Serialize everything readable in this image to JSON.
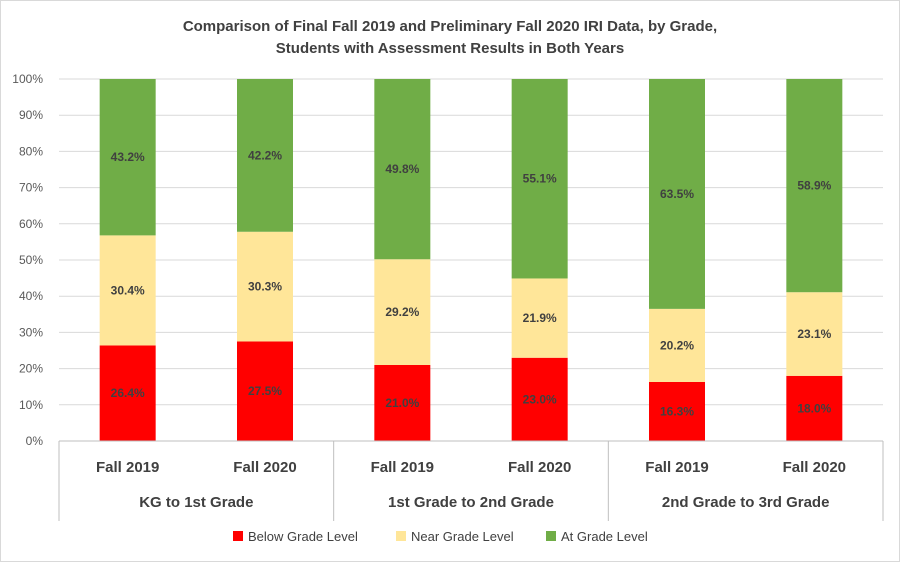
{
  "chart_data": {
    "type": "bar",
    "stacked": true,
    "title_lines": [
      "Comparison of Final Fall 2019 and Preliminary Fall 2020 IRI Data, by Grade,",
      "Students with Assessment Results in Both Years"
    ],
    "groups": [
      "KG to 1st Grade",
      "1st Grade to 2nd Grade",
      "2nd Grade to 3rd Grade"
    ],
    "categories": [
      "Fall 2019",
      "Fall 2020",
      "Fall 2019",
      "Fall 2020",
      "Fall 2019",
      "Fall 2020"
    ],
    "series": [
      {
        "name": "Below Grade Level",
        "color": "#ff0000",
        "values": [
          26.4,
          27.5,
          21.0,
          23.0,
          16.3,
          18.0
        ],
        "labels": [
          "26.4%",
          "27.5%",
          "21.0%",
          "23.0%",
          "16.3%",
          "18.0%"
        ]
      },
      {
        "name": "Near Grade Level",
        "color": "#ffe699",
        "values": [
          30.4,
          30.3,
          29.2,
          21.9,
          20.2,
          23.1
        ],
        "labels": [
          "30.4%",
          "30.3%",
          "29.2%",
          "21.9%",
          "20.2%",
          "23.1%"
        ]
      },
      {
        "name": "At Grade Level",
        "color": "#70ad47",
        "values": [
          43.2,
          42.2,
          49.8,
          55.1,
          63.5,
          58.9
        ],
        "labels": [
          "43.2%",
          "42.2%",
          "49.8%",
          "55.1%",
          "63.5%",
          "58.9%"
        ]
      }
    ],
    "yticks": [
      "0%",
      "10%",
      "20%",
      "30%",
      "40%",
      "50%",
      "60%",
      "70%",
      "80%",
      "90%",
      "100%"
    ],
    "ylim": [
      0,
      100
    ],
    "grid": true,
    "legend": "bottom"
  }
}
